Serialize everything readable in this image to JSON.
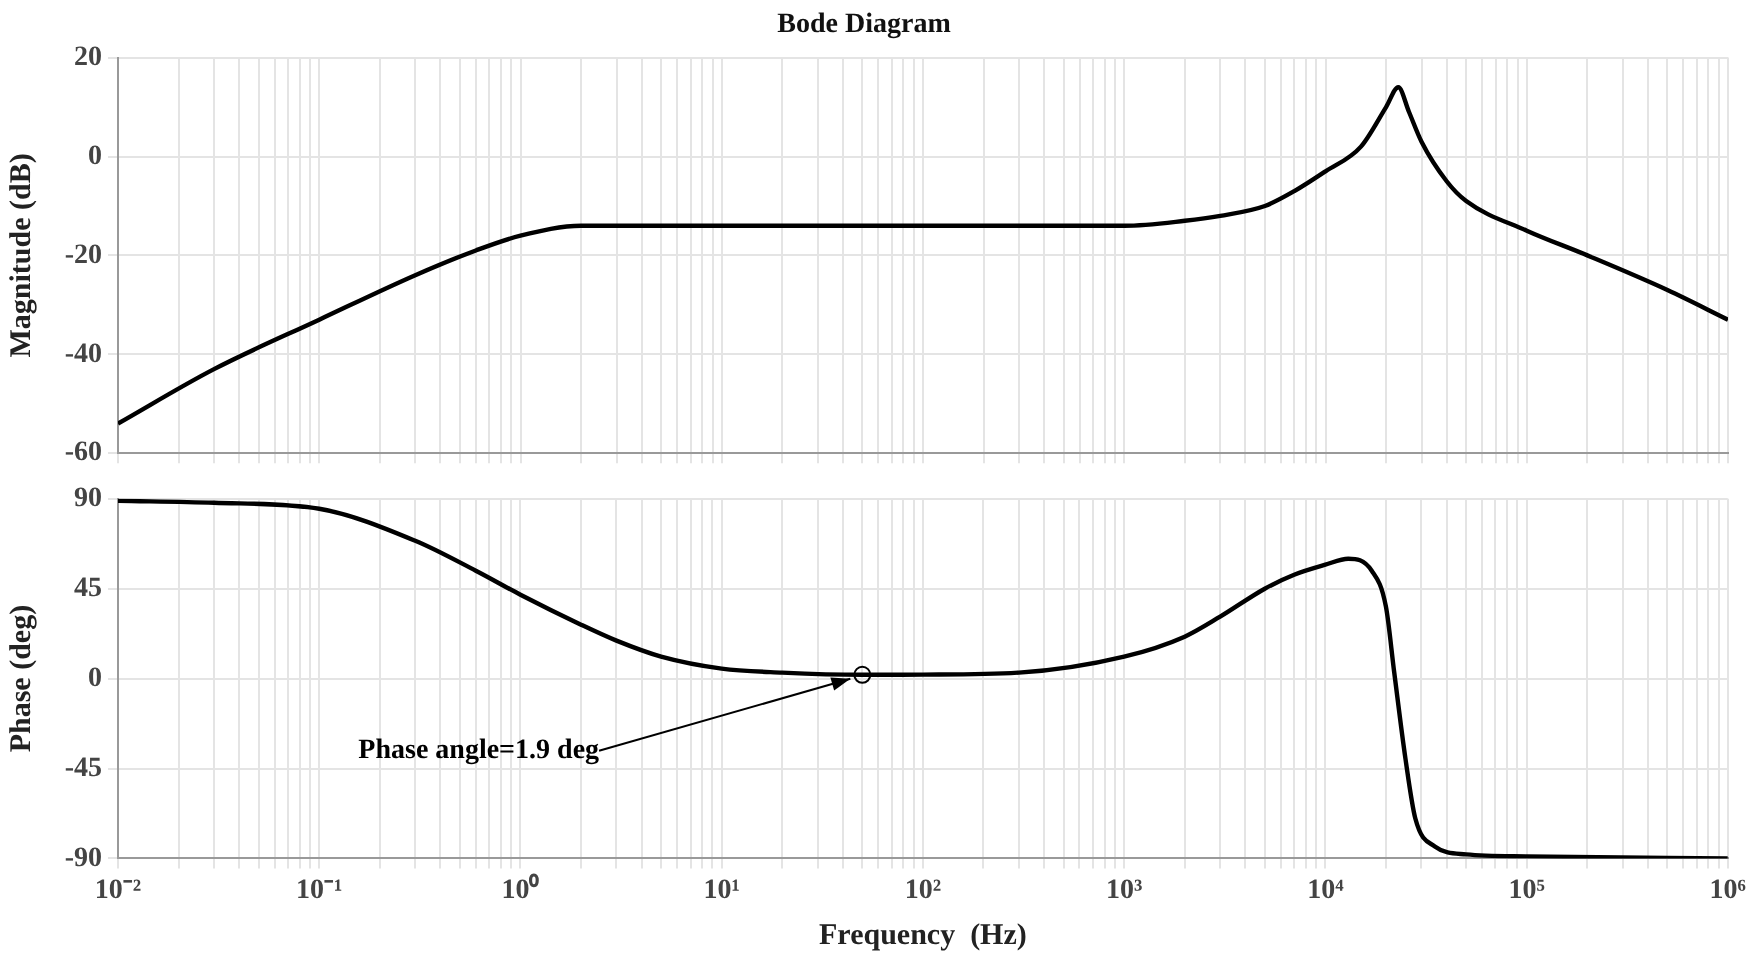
{
  "chart_data": [
    {
      "type": "line",
      "title": "Bode Diagram",
      "ylabel": "Magnitude (dB)",
      "log": "x",
      "grid": true,
      "tick_labels": "y",
      "x": [
        0.01,
        0.03,
        0.1,
        0.3,
        0.6,
        1,
        2,
        3,
        5,
        10,
        100,
        1000,
        2000,
        3000,
        5000,
        7000,
        10000,
        15000,
        20000,
        23000,
        26000,
        30000,
        40000,
        50000,
        100000,
        200000,
        500000,
        1000000
      ],
      "values": [
        -54,
        -43,
        -33,
        -24,
        -19,
        -16,
        -14,
        -14,
        -14,
        -14,
        -14,
        -14,
        -13,
        -12,
        -10,
        -7,
        -3,
        2,
        10,
        14,
        9,
        3,
        -5,
        -9,
        -15,
        -20,
        -27,
        -33
      ],
      "color": "#000000",
      "xlim": [
        0.01,
        1000000
      ],
      "ylim": [
        -60,
        20
      ],
      "yticks": [
        -60,
        -40,
        -20,
        0,
        20
      ],
      "xticks": [
        {
          "value": 0.01,
          "label": null
        },
        {
          "value": 0.02,
          "label": null
        },
        {
          "value": 0.03,
          "label": null
        },
        {
          "value": 0.04,
          "label": null
        },
        {
          "value": 0.05,
          "label": null
        },
        {
          "value": 0.06,
          "label": null
        },
        {
          "value": 0.07,
          "label": null
        },
        {
          "value": 0.08,
          "label": null
        },
        {
          "value": 0.09,
          "label": null
        },
        {
          "value": 0.1,
          "label": null
        },
        {
          "value": 0.2,
          "label": null
        },
        {
          "value": 0.3,
          "label": null
        },
        {
          "value": 0.4,
          "label": null
        },
        {
          "value": 0.5,
          "label": null
        },
        {
          "value": 0.6,
          "label": null
        },
        {
          "value": 0.7,
          "label": null
        },
        {
          "value": 0.8,
          "label": null
        },
        {
          "value": 0.9,
          "label": null
        },
        {
          "value": 1,
          "label": null
        },
        {
          "value": 2,
          "label": null
        },
        {
          "value": 3,
          "label": null
        },
        {
          "value": 4,
          "label": null
        },
        {
          "value": 5,
          "label": null
        },
        {
          "value": 6,
          "label": null
        },
        {
          "value": 7,
          "label": null
        },
        {
          "value": 8,
          "label": null
        },
        {
          "value": 9,
          "label": null
        },
        {
          "value": 10,
          "label": null
        },
        {
          "value": 20,
          "label": null
        },
        {
          "value": 30,
          "label": null
        },
        {
          "value": 40,
          "label": null
        },
        {
          "value": 50,
          "label": null
        },
        {
          "value": 60,
          "label": null
        },
        {
          "value": 70,
          "label": null
        },
        {
          "value": 80,
          "label": null
        },
        {
          "value": 90,
          "label": null
        },
        {
          "value": 100,
          "label": null
        },
        {
          "value": 200,
          "label": null
        },
        {
          "value": 300,
          "label": null
        },
        {
          "value": 400,
          "label": null
        },
        {
          "value": 500,
          "label": null
        },
        {
          "value": 600,
          "label": null
        },
        {
          "value": 700,
          "label": null
        },
        {
          "value": 800,
          "label": null
        },
        {
          "value": 900,
          "label": null
        },
        {
          "value": 1000,
          "label": null
        },
        {
          "value": 2000,
          "label": null
        },
        {
          "value": 3000,
          "label": null
        },
        {
          "value": 4000,
          "label": null
        },
        {
          "value": 5000,
          "label": null
        },
        {
          "value": 6000,
          "label": null
        },
        {
          "value": 7000,
          "label": null
        },
        {
          "value": 8000,
          "label": null
        },
        {
          "value": 9000,
          "label": null
        },
        {
          "value": 10000,
          "label": null
        },
        {
          "value": 20000,
          "label": null
        },
        {
          "value": 30000,
          "label": null
        },
        {
          "value": 40000,
          "label": null
        },
        {
          "value": 50000,
          "label": null
        },
        {
          "value": 60000,
          "label": null
        },
        {
          "value": 70000,
          "label": null
        },
        {
          "value": 80000,
          "label": null
        },
        {
          "value": 90000,
          "label": null
        },
        {
          "value": 100000,
          "label": null
        },
        {
          "value": 200000,
          "label": null
        },
        {
          "value": 300000,
          "label": null
        },
        {
          "value": 400000,
          "label": null
        },
        {
          "value": 500000,
          "label": null
        },
        {
          "value": 600000,
          "label": null
        },
        {
          "value": 700000,
          "label": null
        },
        {
          "value": 800000,
          "label": null
        },
        {
          "value": 900000,
          "label": null
        },
        {
          "value": 1000000,
          "label": null
        }
      ]
    },
    {
      "type": "line",
      "xlabel": "Frequency  (Hz)",
      "ylabel": "Phase (deg)",
      "log": "x",
      "grid": true,
      "x": [
        0.01,
        0.03,
        0.1,
        0.3,
        0.6,
        1,
        2,
        3,
        5,
        10,
        20,
        50,
        100,
        300,
        1000,
        2000,
        3000,
        5000,
        7000,
        10000,
        13000,
        17000,
        20000,
        22000,
        25000,
        28000,
        35000,
        50000,
        100000,
        1000000
      ],
      "values": [
        89,
        88,
        85,
        69,
        54,
        42,
        27,
        19,
        11,
        5,
        3,
        1.9,
        2,
        3,
        11,
        21,
        31,
        45,
        52,
        57,
        60,
        54,
        36,
        3,
        -40,
        -70,
        -84,
        -88,
        -89,
        -90
      ],
      "color": "#000000",
      "xlim": [
        0.01,
        1000000
      ],
      "ylim": [
        -90,
        90
      ],
      "yticks": [
        -90,
        -45,
        0,
        45,
        90
      ],
      "annotations": [
        {
          "text": "Phase angle=1.9 deg",
          "x": 50,
          "y": 1.9
        }
      ],
      "xticks": [
        {
          "value": 0.01,
          "label": "10⁻²"
        },
        {
          "value": 0.02,
          "label": null
        },
        {
          "value": 0.03,
          "label": null
        },
        {
          "value": 0.04,
          "label": null
        },
        {
          "value": 0.05,
          "label": null
        },
        {
          "value": 0.06,
          "label": null
        },
        {
          "value": 0.07,
          "label": null
        },
        {
          "value": 0.08,
          "label": null
        },
        {
          "value": 0.09,
          "label": null
        },
        {
          "value": 0.1,
          "label": "10⁻¹"
        },
        {
          "value": 0.2,
          "label": null
        },
        {
          "value": 0.3,
          "label": null
        },
        {
          "value": 0.4,
          "label": null
        },
        {
          "value": 0.5,
          "label": null
        },
        {
          "value": 0.6,
          "label": null
        },
        {
          "value": 0.7,
          "label": null
        },
        {
          "value": 0.8,
          "label": null
        },
        {
          "value": 0.9,
          "label": null
        },
        {
          "value": 1,
          "label": "10⁰"
        },
        {
          "value": 2,
          "label": null
        },
        {
          "value": 3,
          "label": null
        },
        {
          "value": 4,
          "label": null
        },
        {
          "value": 5,
          "label": null
        },
        {
          "value": 6,
          "label": null
        },
        {
          "value": 7,
          "label": null
        },
        {
          "value": 8,
          "label": null
        },
        {
          "value": 9,
          "label": null
        },
        {
          "value": 10,
          "label": "10¹"
        },
        {
          "value": 20,
          "label": null
        },
        {
          "value": 30,
          "label": null
        },
        {
          "value": 40,
          "label": null
        },
        {
          "value": 50,
          "label": null
        },
        {
          "value": 60,
          "label": null
        },
        {
          "value": 70,
          "label": null
        },
        {
          "value": 80,
          "label": null
        },
        {
          "value": 90,
          "label": null
        },
        {
          "value": 100,
          "label": "10²"
        },
        {
          "value": 200,
          "label": null
        },
        {
          "value": 300,
          "label": null
        },
        {
          "value": 400,
          "label": null
        },
        {
          "value": 500,
          "label": null
        },
        {
          "value": 600,
          "label": null
        },
        {
          "value": 700,
          "label": null
        },
        {
          "value": 800,
          "label": null
        },
        {
          "value": 900,
          "label": null
        },
        {
          "value": 1000,
          "label": "10³"
        },
        {
          "value": 2000,
          "label": null
        },
        {
          "value": 3000,
          "label": null
        },
        {
          "value": 4000,
          "label": null
        },
        {
          "value": 5000,
          "label": null
        },
        {
          "value": 6000,
          "label": null
        },
        {
          "value": 7000,
          "label": null
        },
        {
          "value": 8000,
          "label": null
        },
        {
          "value": 9000,
          "label": null
        },
        {
          "value": 10000,
          "label": "10⁴"
        },
        {
          "value": 20000,
          "label": null
        },
        {
          "value": 30000,
          "label": null
        },
        {
          "value": 40000,
          "label": null
        },
        {
          "value": 50000,
          "label": null
        },
        {
          "value": 60000,
          "label": null
        },
        {
          "value": 70000,
          "label": null
        },
        {
          "value": 80000,
          "label": null
        },
        {
          "value": 90000,
          "label": null
        },
        {
          "value": 100000,
          "label": "10⁵"
        },
        {
          "value": 200000,
          "label": null
        },
        {
          "value": 300000,
          "label": null
        },
        {
          "value": 400000,
          "label": null
        },
        {
          "value": 500000,
          "label": null
        },
        {
          "value": 600000,
          "label": null
        },
        {
          "value": 700000,
          "label": null
        },
        {
          "value": 800000,
          "label": null
        },
        {
          "value": 900000,
          "label": null
        },
        {
          "value": 1000000,
          "label": "10⁶"
        }
      ]
    }
  ]
}
